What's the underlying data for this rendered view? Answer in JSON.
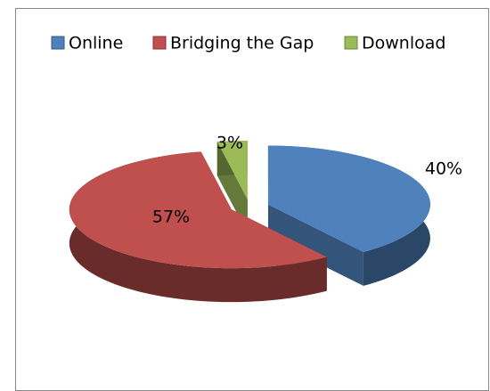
{
  "chart_data": {
    "type": "pie",
    "categories": [
      "Online",
      "Bridging the Gap",
      "Download"
    ],
    "values": [
      40,
      57,
      3
    ],
    "value_labels": [
      "40%",
      "57%",
      "3%"
    ],
    "colors": [
      "#4f81bd",
      "#c0504d",
      "#9bbb59"
    ],
    "legend": "top"
  }
}
